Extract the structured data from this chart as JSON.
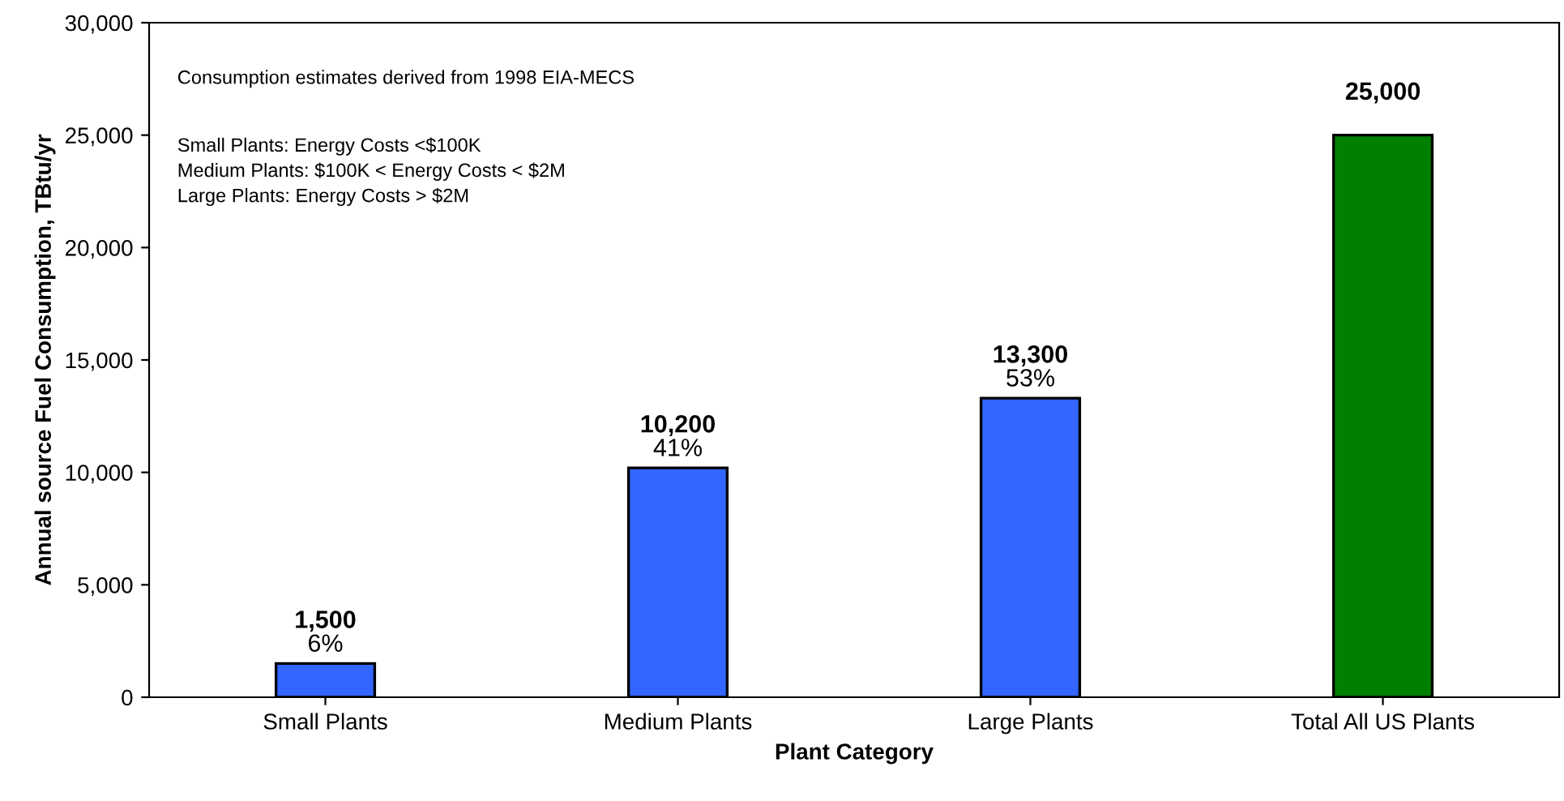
{
  "chart_data": {
    "type": "bar",
    "xlabel": "Plant Category",
    "ylabel": "Annual source Fuel Consumption, TBtu/yr",
    "categories": [
      "Small Plants",
      "Medium Plants",
      "Large Plants",
      "Total All US Plants"
    ],
    "values": [
      1500,
      10200,
      13300,
      25000
    ],
    "colors": [
      "#3366ff",
      "#3366ff",
      "#3366ff",
      "#008000"
    ],
    "value_labels": [
      "1,500",
      "10,200",
      "13,300",
      "25,000"
    ],
    "ylim": [
      0,
      30000
    ],
    "yticks": [
      0,
      {
        "value": 5000,
        "label": "5,000"
      },
      {
        "value": 10000,
        "label": "10,000"
      },
      {
        "value": 15000,
        "label": "15,000"
      },
      {
        "value": 20000,
        "label": "20,000"
      },
      {
        "value": 25000,
        "label": "25,000"
      },
      {
        "value": 30000,
        "label": "30,000"
      }
    ],
    "grid": false,
    "legend": false,
    "annotations": [
      {
        "text": "6%",
        "x": "Small Plants",
        "y": 1500
      },
      {
        "text": "41%",
        "x": "Medium Plants",
        "y": 10200
      },
      {
        "text": "53%",
        "x": "Large Plants",
        "y": 13300
      },
      "Consumption estimates derived from 1998 EIA-MECS",
      "Small Plants: Energy Costs <$100K\nMedium Plants: $100K < Energy Costs < $2M\nLarge Plants: Energy Costs > $2M"
    ]
  }
}
